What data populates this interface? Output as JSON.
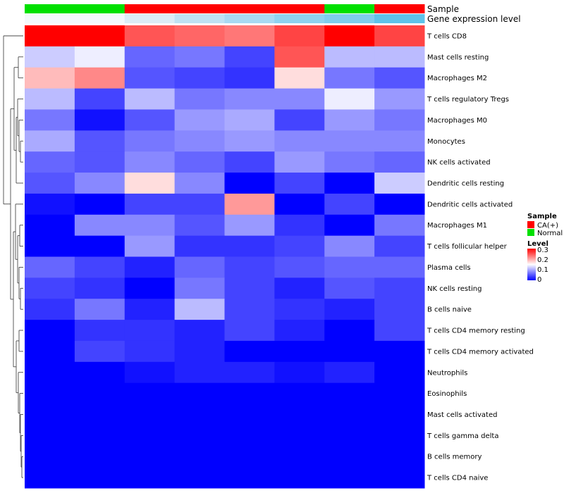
{
  "chart_data": {
    "type": "heatmap",
    "columns": [
      "Normal",
      "Normal",
      "CA(+)",
      "CA(+)",
      "CA(+)",
      "CA(+)",
      "Normal",
      "CA(+)"
    ],
    "annotation_tracks": [
      {
        "label": "Sample",
        "cells": [
          "#00e000",
          "#00e000",
          "#ff0000",
          "#ff0000",
          "#ff0000",
          "#ff0000",
          "#00e000",
          "#ff0000"
        ]
      },
      {
        "label": "Gene expression level",
        "cells": [
          "#f4f9fc",
          "#f4f9fc",
          "#dcedf7",
          "#bfe2f4",
          "#a9d9f2",
          "#8fd2f0",
          "#7fcdee",
          "#5ec3ea"
        ]
      }
    ],
    "rows": [
      {
        "label": "T cells CD8",
        "values": [
          0.3,
          0.3,
          0.25,
          0.24,
          0.23,
          0.26,
          0.3,
          0.26
        ]
      },
      {
        "label": "Mast cells resting",
        "values": [
          0.12,
          0.14,
          0.06,
          0.07,
          0.04,
          0.25,
          0.11,
          0.11
        ]
      },
      {
        "label": "Macrophages M2",
        "values": [
          0.19,
          0.22,
          0.05,
          0.04,
          0.03,
          0.17,
          0.07,
          0.05
        ]
      },
      {
        "label": "T cells regulatory  Tregs",
        "values": [
          0.11,
          0.04,
          0.11,
          0.07,
          0.08,
          0.08,
          0.14,
          0.09
        ]
      },
      {
        "label": "Macrophages M0",
        "values": [
          0.07,
          0.01,
          0.05,
          0.09,
          0.1,
          0.04,
          0.09,
          0.07
        ]
      },
      {
        "label": "Monocytes",
        "values": [
          0.1,
          0.05,
          0.07,
          0.08,
          0.09,
          0.08,
          0.08,
          0.08
        ]
      },
      {
        "label": "NK cells activated",
        "values": [
          0.06,
          0.05,
          0.08,
          0.06,
          0.04,
          0.09,
          0.07,
          0.06
        ]
      },
      {
        "label": "Dendritic cells resting",
        "values": [
          0.05,
          0.08,
          0.17,
          0.08,
          0.0,
          0.04,
          0.0,
          0.12
        ]
      },
      {
        "label": "Dendritic cells activated",
        "values": [
          0.01,
          0.0,
          0.04,
          0.04,
          0.21,
          0.0,
          0.04,
          0.0
        ]
      },
      {
        "label": "Macrophages M1",
        "values": [
          0.0,
          0.08,
          0.08,
          0.05,
          0.09,
          0.03,
          0.0,
          0.07
        ]
      },
      {
        "label": "T cells follicular helper",
        "values": [
          0.0,
          0.0,
          0.09,
          0.03,
          0.03,
          0.04,
          0.08,
          0.04
        ]
      },
      {
        "label": "Plasma cells",
        "values": [
          0.06,
          0.04,
          0.02,
          0.06,
          0.04,
          0.05,
          0.06,
          0.06
        ]
      },
      {
        "label": "NK cells resting",
        "values": [
          0.04,
          0.03,
          0.0,
          0.07,
          0.04,
          0.02,
          0.05,
          0.04
        ]
      },
      {
        "label": "B cells naive",
        "values": [
          0.03,
          0.07,
          0.02,
          0.11,
          0.04,
          0.03,
          0.02,
          0.04
        ]
      },
      {
        "label": "T cells CD4 memory resting",
        "values": [
          0.0,
          0.03,
          0.03,
          0.02,
          0.04,
          0.02,
          0.0,
          0.04
        ]
      },
      {
        "label": "T cells CD4 memory activated",
        "values": [
          0.0,
          0.04,
          0.03,
          0.02,
          0.0,
          0.0,
          0.0,
          0.0
        ]
      },
      {
        "label": "Neutrophils",
        "values": [
          0.0,
          0.0,
          0.01,
          0.02,
          0.02,
          0.01,
          0.02,
          0.0
        ]
      },
      {
        "label": "Eosinophils",
        "values": [
          0.0,
          0.0,
          0.0,
          0.0,
          0.0,
          0.0,
          0.0,
          0.0
        ]
      },
      {
        "label": "Mast cells activated",
        "values": [
          0.0,
          0.0,
          0.0,
          0.0,
          0.0,
          0.0,
          0.0,
          0.0
        ]
      },
      {
        "label": "T cells gamma delta",
        "values": [
          0.0,
          0.0,
          0.0,
          0.0,
          0.0,
          0.0,
          0.0,
          0.0
        ]
      },
      {
        "label": "B cells memory",
        "values": [
          0.0,
          0.0,
          0.0,
          0.0,
          0.0,
          0.0,
          0.0,
          0.0
        ]
      },
      {
        "label": "T cells CD4 naive",
        "values": [
          0.0,
          0.0,
          0.0,
          0.0,
          0.0,
          0.0,
          0.0,
          0.0
        ]
      }
    ],
    "color_scale": {
      "min": 0,
      "mid": 0.15,
      "max": 0.3,
      "low_color": "#0000ff",
      "mid_color": "#ffffff",
      "high_color": "#ff0000"
    },
    "legend": {
      "sample": {
        "title": "Sample",
        "entries": [
          {
            "label": "CA(+)",
            "color": "#ff0000"
          },
          {
            "label": "Normal",
            "color": "#00e000"
          }
        ]
      },
      "level": {
        "title": "Level",
        "ticks": [
          "0.3",
          "0.2",
          "0.1",
          "0"
        ]
      }
    },
    "dendrogram": "row clustering on left"
  }
}
